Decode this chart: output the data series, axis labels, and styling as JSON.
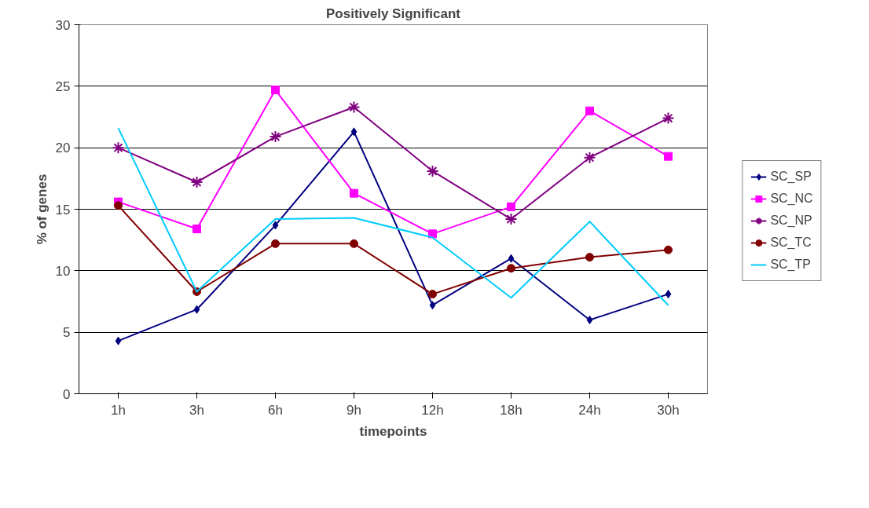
{
  "chart_data": {
    "type": "line",
    "title": "Positively Significant",
    "xlabel": "timepoints",
    "ylabel": "% of genes",
    "categories": [
      "1h",
      "3h",
      "6h",
      "9h",
      "12h",
      "18h",
      "24h",
      "30h"
    ],
    "ylim": [
      0,
      30
    ],
    "yticks": [
      0,
      5,
      10,
      15,
      20,
      25,
      30
    ],
    "grid": "y",
    "legend": "right",
    "series": [
      {
        "name": "SC_SP",
        "color": "#000080",
        "marker": "diamond",
        "values": [
          4.3,
          6.85,
          13.7,
          21.3,
          7.2,
          11.0,
          6.0,
          8.1
        ]
      },
      {
        "name": "SC_NC",
        "color": "#ff00ff",
        "marker": "square",
        "values": [
          15.6,
          13.4,
          24.7,
          16.3,
          13.0,
          15.2,
          23.0,
          19.3
        ]
      },
      {
        "name": "SC_NP",
        "color": "#800080",
        "marker": "cross",
        "values": [
          20.0,
          17.2,
          20.9,
          23.3,
          18.1,
          14.2,
          19.2,
          22.4
        ]
      },
      {
        "name": "SC_TC",
        "color": "#800000",
        "marker": "circle",
        "values": [
          15.3,
          8.3,
          12.2,
          12.2,
          8.1,
          10.2,
          11.1,
          11.7
        ]
      },
      {
        "name": "SC_TP",
        "color": "#00ccff",
        "marker": "none",
        "values": [
          21.6,
          8.3,
          14.2,
          14.3,
          12.7,
          7.8,
          14.0,
          7.2
        ]
      }
    ]
  }
}
